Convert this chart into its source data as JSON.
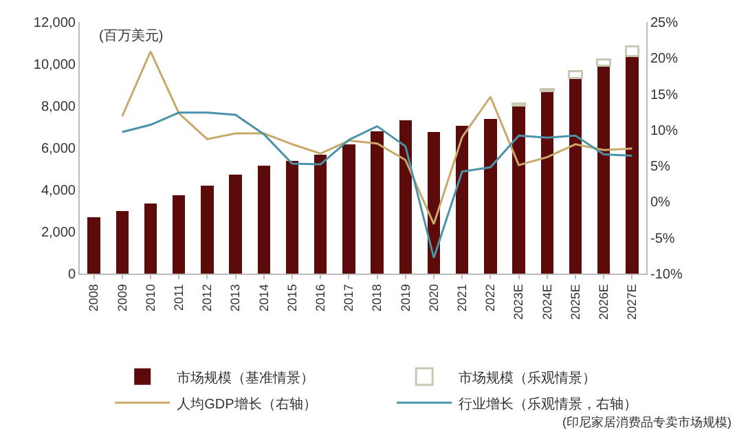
{
  "chart_data": {
    "type": "bar",
    "stacked": true,
    "categories": [
      "2008",
      "2009",
      "2010",
      "2011",
      "2012",
      "2013",
      "2014",
      "2015",
      "2016",
      "2017",
      "2018",
      "2019",
      "2020",
      "2021",
      "2022",
      "2023E",
      "2024E",
      "2025E",
      "2026E",
      "2027E"
    ],
    "series": [
      {
        "name": "市场规模（基准情景）",
        "color": "#5c0a0a",
        "values": [
          2700,
          3000,
          3340,
          3730,
          4210,
          4710,
          5140,
          5390,
          5660,
          6160,
          6800,
          7320,
          6760,
          7050,
          7380,
          8020,
          8710,
          9330,
          9910,
          10390
        ]
      },
      {
        "name": "市场规模（乐观情景）",
        "color": "#c8c8b4",
        "values": [
          null,
          null,
          null,
          null,
          null,
          null,
          null,
          null,
          null,
          null,
          null,
          null,
          null,
          null,
          null,
          80,
          100,
          310,
          290,
          450
        ]
      },
      {
        "name": "人均GDP增长（右轴）",
        "type": "line",
        "axis": "y2",
        "color": "#c8a96a",
        "values": [
          null,
          11.9,
          20.9,
          12.3,
          8.7,
          9.5,
          9.5,
          8.0,
          6.7,
          8.5,
          8.1,
          5.8,
          -3.1,
          9.0,
          14.6,
          5.1,
          6.2,
          8.0,
          7.2,
          7.4
        ]
      },
      {
        "name": "行业增长（乐观情景，右轴）",
        "type": "line",
        "axis": "y2",
        "color": "#4a93a8",
        "values": [
          null,
          9.7,
          10.7,
          12.4,
          12.4,
          12.1,
          9.4,
          5.3,
          5.2,
          8.6,
          10.5,
          7.7,
          -7.8,
          4.2,
          4.8,
          9.2,
          8.9,
          9.2,
          6.6,
          6.4
        ]
      }
    ],
    "ylim": [
      0,
      12000
    ],
    "yticks": [
      0,
      {
        "value": 2000,
        "label": "2,000"
      },
      {
        "value": 4000,
        "label": "4,000"
      },
      {
        "value": 6000,
        "label": "6,000"
      },
      {
        "value": 8000,
        "label": "8,000"
      },
      {
        "value": 10000,
        "label": "10,000"
      },
      {
        "value": 12000,
        "label": "12,000"
      }
    ],
    "y2lim": [
      -10,
      25
    ],
    "y2ticks": [
      {
        "value": -10,
        "label": "-10%"
      },
      {
        "value": -5,
        "label": "-5%"
      },
      {
        "value": 0,
        "label": "0%"
      },
      {
        "value": 5,
        "label": "5%"
      },
      {
        "value": 10,
        "label": "10%"
      },
      {
        "value": 15,
        "label": "15%"
      },
      {
        "value": 20,
        "label": "20%"
      },
      {
        "value": 25,
        "label": "25%"
      }
    ],
    "annotations": [
      "(百万美元)",
      "(印尼家居消费品专卖市场规模)"
    ],
    "legend": "bottom",
    "grid": false
  }
}
